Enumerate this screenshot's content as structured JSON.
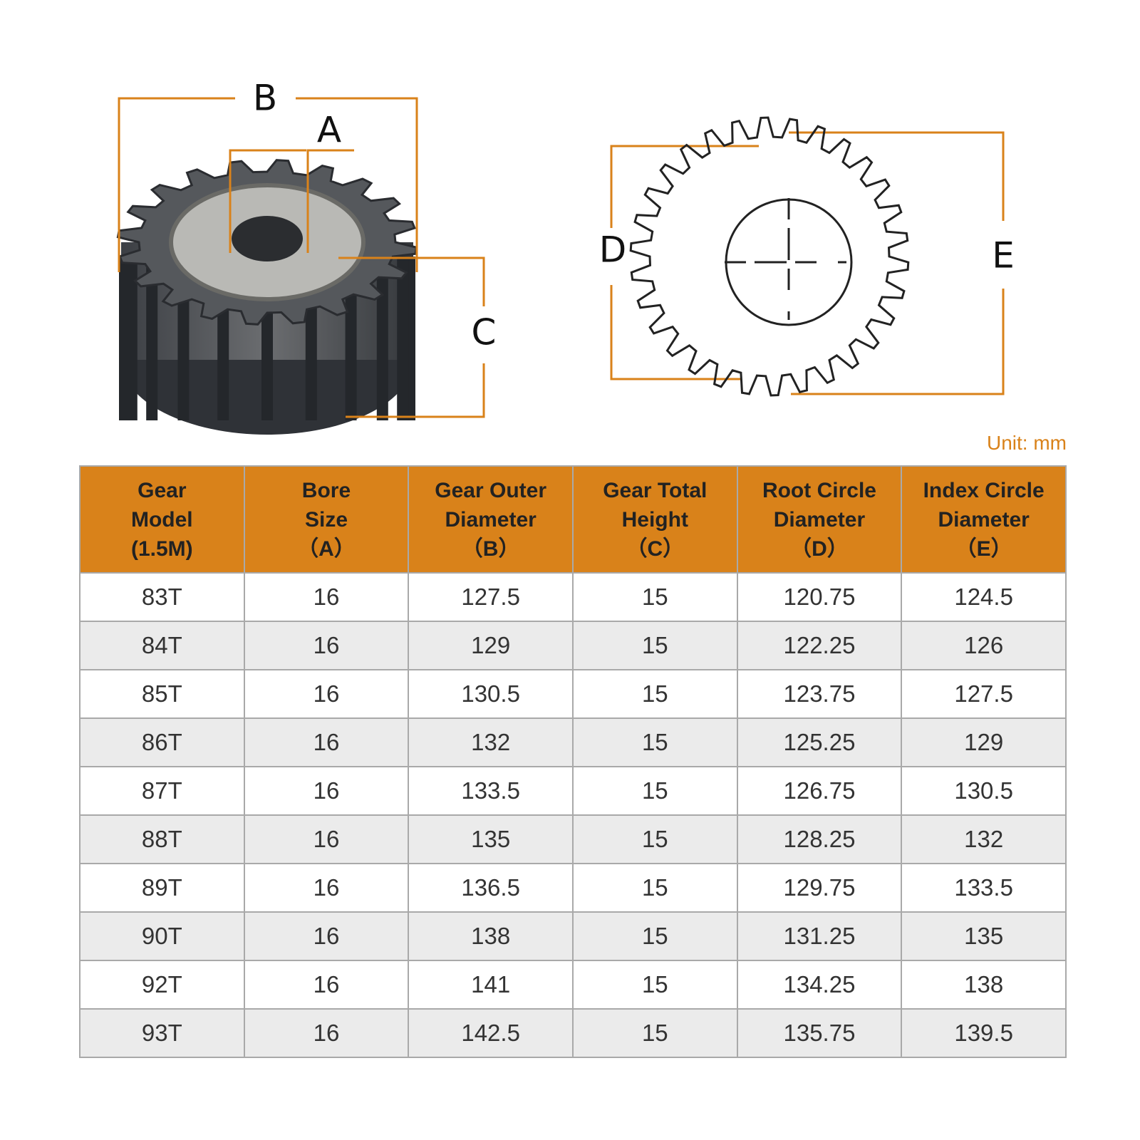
{
  "diagram": {
    "labels": {
      "B": "B",
      "A": "A",
      "C": "C",
      "D": "D",
      "E": "E"
    },
    "unit": "Unit: mm"
  },
  "table": {
    "header": [
      [
        "Gear",
        "Model",
        "(1.5M)"
      ],
      [
        "Bore",
        "Size",
        "（A）"
      ],
      [
        "Gear Outer",
        "Diameter",
        "（B）"
      ],
      [
        "Gear Total",
        "Height",
        "（C）"
      ],
      [
        "Root Circle",
        "Diameter",
        "（D）"
      ],
      [
        "Index Circle",
        "Diameter",
        "（E）"
      ]
    ],
    "rows": [
      [
        "83T",
        "16",
        "127.5",
        "15",
        "120.75",
        "124.5"
      ],
      [
        "84T",
        "16",
        "129",
        "15",
        "122.25",
        "126"
      ],
      [
        "85T",
        "16",
        "130.5",
        "15",
        "123.75",
        "127.5"
      ],
      [
        "86T",
        "16",
        "132",
        "15",
        "125.25",
        "129"
      ],
      [
        "87T",
        "16",
        "133.5",
        "15",
        "126.75",
        "130.5"
      ],
      [
        "88T",
        "16",
        "135",
        "15",
        "128.25",
        "132"
      ],
      [
        "89T",
        "16",
        "136.5",
        "15",
        "129.75",
        "133.5"
      ],
      [
        "90T",
        "16",
        "138",
        "15",
        "131.25",
        "135"
      ],
      [
        "92T",
        "16",
        "141",
        "15",
        "134.25",
        "138"
      ],
      [
        "93T",
        "16",
        "142.5",
        "15",
        "135.75",
        "139.5"
      ]
    ]
  }
}
